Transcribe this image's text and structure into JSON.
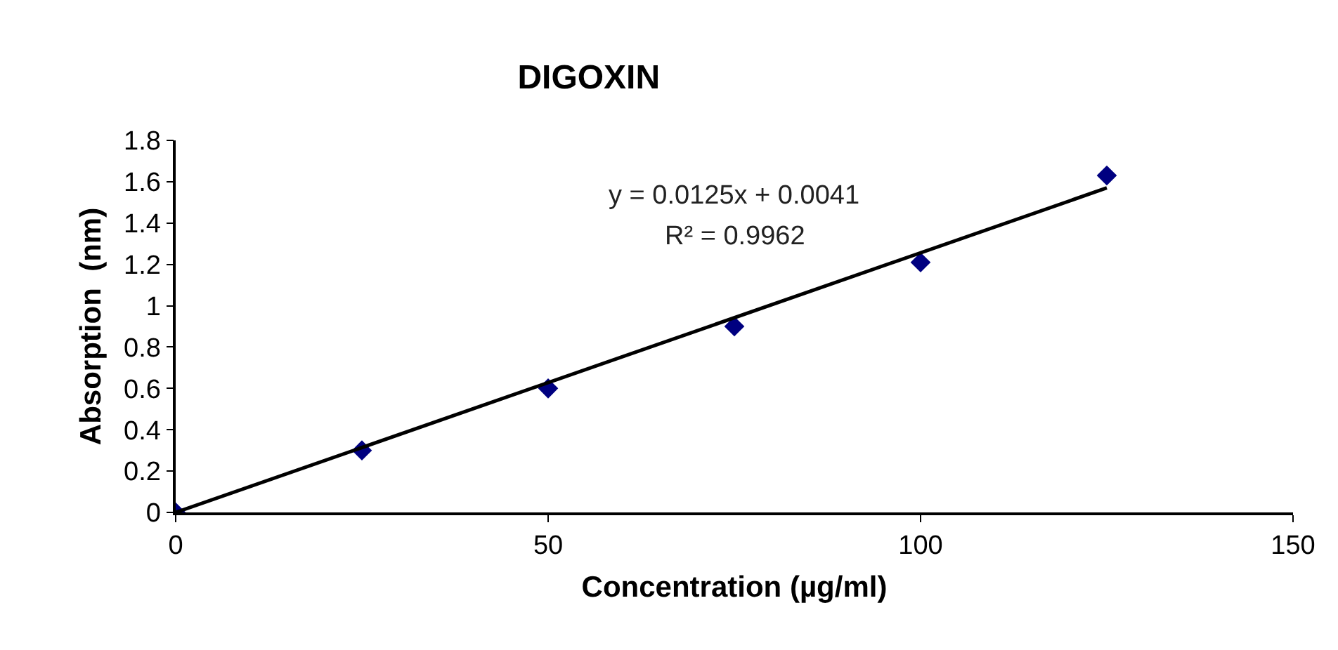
{
  "chart_data": {
    "type": "scatter",
    "title": "DIGOXIN",
    "xlabel": "Concentration (µg/ml)",
    "ylabel": "Absorption  (nm)",
    "xlim": [
      0,
      150
    ],
    "xticks": [
      0,
      50,
      100,
      150
    ],
    "ylim": [
      0,
      1.8
    ],
    "yticks": [
      0,
      0.2,
      0.4,
      0.6,
      0.8,
      1,
      1.2,
      1.4,
      1.6,
      1.8
    ],
    "x": [
      0,
      25,
      50,
      75,
      100,
      125
    ],
    "series": [
      {
        "type": "scatter",
        "color": "#000080",
        "marker": "diamond",
        "values": [
          0,
          0.3,
          0.6,
          0.9,
          1.21,
          1.63
        ]
      },
      {
        "type": "line",
        "color": "#000000",
        "marker": "none",
        "line_style": "solid",
        "x": [
          0,
          125
        ],
        "values": [
          0,
          1.57
        ]
      }
    ],
    "annotations": [
      "y = 0.0125x + 0.0041",
      "R² = 0.9962"
    ],
    "grid": false
  }
}
